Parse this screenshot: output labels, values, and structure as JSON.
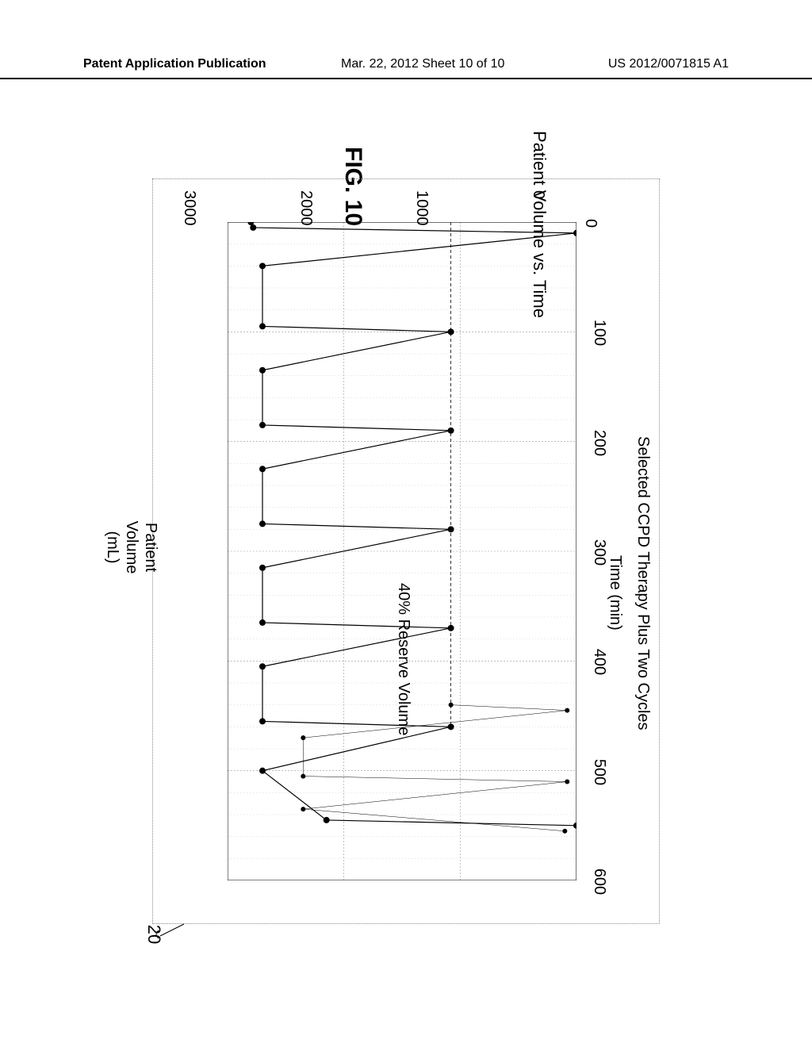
{
  "header": {
    "left": "Patent Application Publication",
    "center": "Mar. 22, 2012  Sheet 10 of 10",
    "right": "US 2012/0071815 A1"
  },
  "figure": {
    "label": "FIG. 10",
    "callout": "20",
    "chart": {
      "type": "line",
      "title": "Patient Volume vs. Time",
      "ylabel": "Patient\nVolume\n(mL)",
      "xlabel": "Time (min)",
      "xsublabel": "Selected CCPD Therapy Plus Two Cycles",
      "reserve_label": "40% Reserve Volume",
      "background_color": "#ffffff",
      "grid_color": "#999999",
      "axis_color": "#000000",
      "label_fontsize": 20,
      "title_fontsize": 22,
      "xlim": [
        0,
        600
      ],
      "ylim": [
        0,
        3000
      ],
      "xticks": [
        0,
        100,
        200,
        300,
        400,
        500,
        600
      ],
      "yticks": [
        0,
        1000,
        2000,
        3000
      ],
      "has_minor_x_grid": true,
      "x_minor_count_per_major": 4,
      "series": [
        {
          "name": "main",
          "color": "#000000",
          "line_width": 1.2,
          "marker": "circle",
          "marker_size": 4,
          "x": [
            0,
            5,
            10,
            40,
            95,
            100,
            135,
            185,
            190,
            225,
            275,
            280,
            315,
            365,
            370,
            405,
            455,
            460,
            500,
            545,
            550
          ],
          "y": [
            2800,
            2780,
            0,
            2700,
            2700,
            1080,
            2700,
            2700,
            1080,
            2700,
            2700,
            1080,
            2700,
            2700,
            1080,
            2700,
            2700,
            1080,
            2700,
            2150,
            0
          ]
        },
        {
          "name": "final-two-cycles",
          "color": "#000000",
          "line_width": 0.5,
          "marker": "circle",
          "marker_size": 3,
          "x": [
            440,
            445,
            470,
            505,
            510,
            535,
            555
          ],
          "y": [
            1080,
            80,
            2350,
            2350,
            80,
            2350,
            100
          ]
        }
      ],
      "reserve_line": {
        "y": 1080,
        "color": "#000000",
        "x_start": 0,
        "x_end": 460,
        "style": "dashed"
      }
    }
  }
}
